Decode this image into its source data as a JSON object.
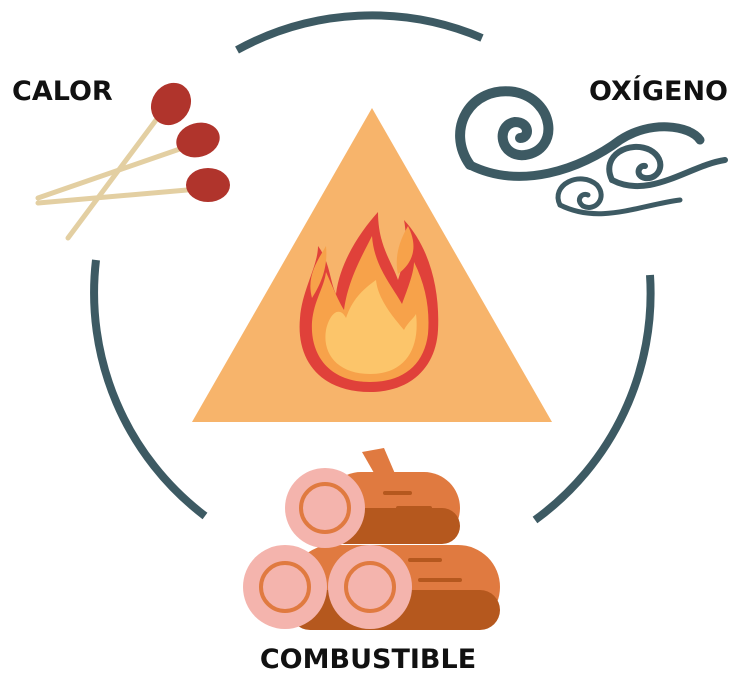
{
  "labels": {
    "heat": "CALOR",
    "oxygen": "OXÍGENO",
    "fuel": "COMBUSTIBLE"
  }
}
